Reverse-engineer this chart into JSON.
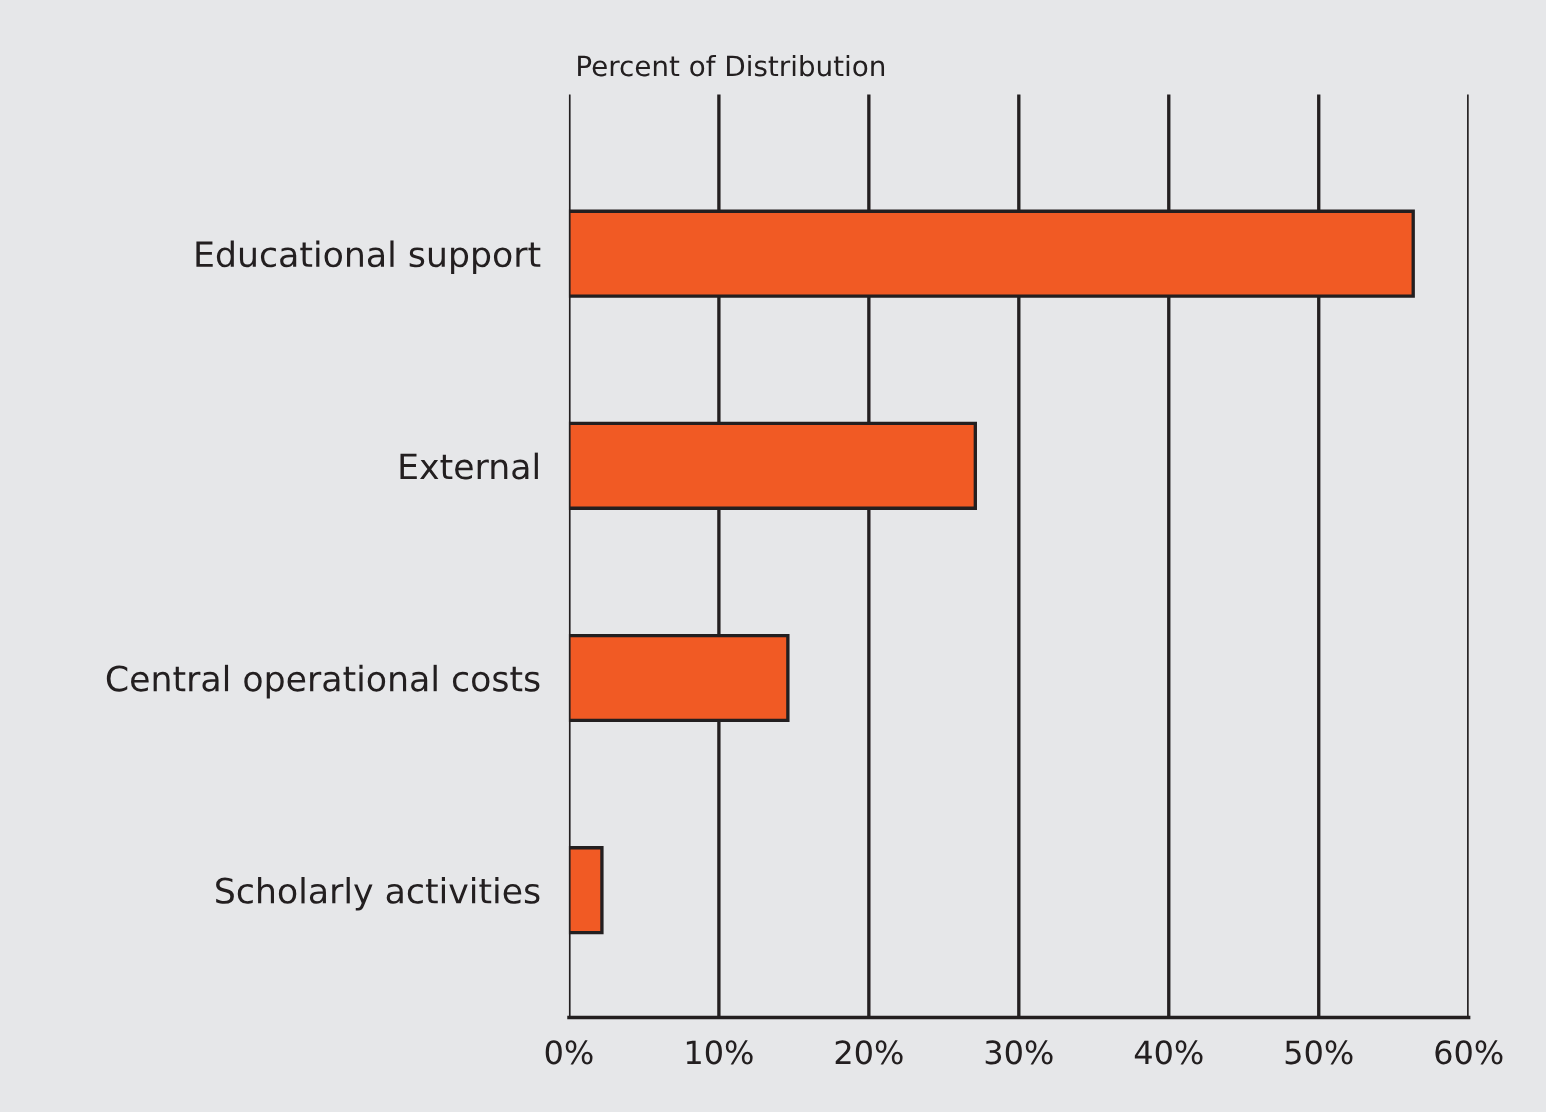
{
  "chart_data": {
    "type": "bar",
    "orientation": "horizontal",
    "xlabel": "Percent of Distribution",
    "categories": [
      "Educational support",
      "External",
      "Central operational costs",
      "Scholarly activities"
    ],
    "values": [
      56.3,
      27.1,
      14.6,
      2.2
    ],
    "color": "#f15a24",
    "xlim": [
      0,
      60
    ],
    "xticks": [
      {
        "value": 0,
        "label": "0%"
      },
      {
        "value": 10,
        "label": "10%"
      },
      {
        "value": 20,
        "label": "20%"
      },
      {
        "value": 30,
        "label": "30%"
      },
      {
        "value": 40,
        "label": "40%"
      },
      {
        "value": 50,
        "label": "50%"
      },
      {
        "value": 60,
        "label": "60%"
      }
    ],
    "grid": "x",
    "legend": false
  }
}
